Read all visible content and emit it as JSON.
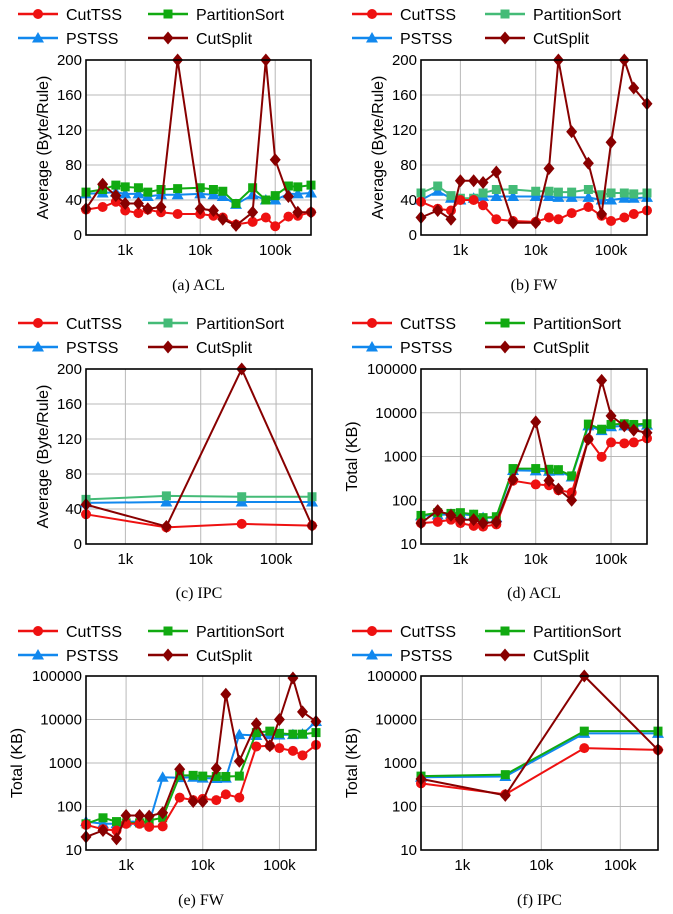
{
  "colors": {
    "CutTSS": "#ee1111",
    "PartitionSort": "#11aa11",
    "PartitionSort_light": "#44bb77",
    "PSTSS": "#1188ee",
    "CutSplit": "#880000"
  },
  "chart_data": [
    {
      "id": "a",
      "type": "line",
      "caption": "(a)  ACL",
      "ylabel": "Average (Byte/Rule)",
      "xscale": "log",
      "ylim": [
        0,
        200
      ],
      "yticks": [
        0,
        40,
        80,
        120,
        160,
        200
      ],
      "xticks": [
        {
          "v": 1000,
          "label": "1k"
        },
        {
          "v": 10000,
          "label": "10k"
        },
        {
          "v": 100000,
          "label": "100k"
        }
      ],
      "legend_order": [
        "CutTSS",
        "PartitionSort",
        "PSTSS",
        "CutSplit"
      ],
      "series": [
        {
          "name": "CutTSS",
          "color": "#ee1111",
          "marker": "circle",
          "x": [
            300,
            500,
            750,
            1000,
            1500,
            2000,
            3000,
            5000,
            10000,
            15000,
            20000,
            30000,
            50000,
            75000,
            100000,
            150000,
            200000,
            300000
          ],
          "y": [
            29,
            32,
            38,
            28,
            25,
            29,
            26,
            24,
            24,
            22,
            20,
            12,
            15,
            20,
            10,
            21,
            22,
            26
          ]
        },
        {
          "name": "PartitionSort",
          "color": "#11aa11",
          "marker": "square",
          "x": [
            300,
            500,
            750,
            1000,
            1500,
            2000,
            3000,
            5000,
            10000,
            15000,
            20000,
            30000,
            50000,
            75000,
            100000,
            150000,
            200000,
            300000
          ],
          "y": [
            49,
            52,
            57,
            55,
            54,
            49,
            52,
            53,
            54,
            52,
            50,
            36,
            54,
            40,
            45,
            56,
            55,
            57
          ]
        },
        {
          "name": "PSTSS",
          "color": "#1188ee",
          "marker": "triangle",
          "x": [
            300,
            500,
            750,
            1000,
            1500,
            2000,
            3000,
            5000,
            10000,
            15000,
            20000,
            30000,
            50000,
            75000,
            100000,
            150000,
            200000,
            300000
          ],
          "y": [
            47,
            48,
            49,
            47,
            47,
            44,
            46,
            46,
            47,
            46,
            44,
            35,
            46,
            40,
            40,
            47,
            47,
            48
          ]
        },
        {
          "name": "CutSplit",
          "color": "#880000",
          "marker": "diamond",
          "x": [
            300,
            500,
            750,
            1000,
            1500,
            2000,
            3000,
            5000,
            10000,
            15000,
            20000,
            30000,
            50000,
            75000,
            100000,
            150000,
            200000,
            300000
          ],
          "y": [
            30,
            58,
            45,
            36,
            36,
            30,
            32,
            200,
            30,
            28,
            18,
            11,
            26,
            200,
            86,
            44,
            26,
            26
          ]
        }
      ]
    },
    {
      "id": "b",
      "type": "line",
      "caption": "(b)  FW",
      "ylabel": "Average (Byte/Rule)",
      "xscale": "log",
      "ylim": [
        0,
        200
      ],
      "yticks": [
        0,
        40,
        80,
        120,
        160,
        200
      ],
      "xticks": [
        {
          "v": 1000,
          "label": "1k"
        },
        {
          "v": 10000,
          "label": "10k"
        },
        {
          "v": 100000,
          "label": "100k"
        }
      ],
      "legend_order": [
        "CutTSS",
        "PartitionSort",
        "PSTSS",
        "CutSplit"
      ],
      "series": [
        {
          "name": "CutTSS",
          "color": "#ee1111",
          "marker": "circle",
          "x": [
            300,
            500,
            750,
            1000,
            1500,
            2000,
            3000,
            5000,
            10000,
            15000,
            20000,
            30000,
            50000,
            75000,
            100000,
            150000,
            200000,
            300000
          ],
          "y": [
            38,
            30,
            28,
            40,
            40,
            34,
            18,
            16,
            15,
            20,
            18,
            25,
            32,
            22,
            16,
            20,
            24,
            28
          ]
        },
        {
          "name": "PartitionSort",
          "color": "#44bb77",
          "marker": "square",
          "x": [
            300,
            500,
            750,
            1000,
            1500,
            2000,
            3000,
            5000,
            10000,
            15000,
            20000,
            30000,
            50000,
            75000,
            100000,
            150000,
            200000,
            300000
          ],
          "y": [
            48,
            56,
            45,
            42,
            42,
            48,
            52,
            52,
            50,
            50,
            49,
            49,
            52,
            46,
            48,
            48,
            47,
            48
          ]
        },
        {
          "name": "PSTSS",
          "color": "#1188ee",
          "marker": "triangle",
          "x": [
            300,
            500,
            750,
            1000,
            1500,
            2000,
            3000,
            5000,
            10000,
            15000,
            20000,
            30000,
            50000,
            75000,
            100000,
            150000,
            200000,
            300000
          ],
          "y": [
            40,
            50,
            42,
            40,
            42,
            44,
            44,
            44,
            44,
            44,
            43,
            43,
            43,
            40,
            40,
            42,
            42,
            43
          ]
        },
        {
          "name": "CutSplit",
          "color": "#880000",
          "marker": "diamond",
          "x": [
            300,
            500,
            750,
            1000,
            1500,
            2000,
            3000,
            5000,
            10000,
            15000,
            20000,
            30000,
            50000,
            75000,
            100000,
            150000,
            200000,
            300000
          ],
          "y": [
            20,
            28,
            18,
            62,
            62,
            60,
            72,
            14,
            14,
            76,
            200,
            118,
            82,
            24,
            106,
            200,
            168,
            150
          ]
        }
      ]
    },
    {
      "id": "c",
      "type": "line",
      "caption": "(c)  IPC",
      "ylabel": "Average (Byte/Rule)",
      "xscale": "log",
      "ylim": [
        0,
        200
      ],
      "yticks": [
        0,
        40,
        80,
        120,
        160,
        200
      ],
      "xticks": [
        {
          "v": 1000,
          "label": "1k"
        },
        {
          "v": 10000,
          "label": "10k"
        },
        {
          "v": 100000,
          "label": "100k"
        }
      ],
      "legend_order": [
        "CutTSS",
        "PartitionSort",
        "PSTSS",
        "CutSplit"
      ],
      "series": [
        {
          "name": "CutTSS",
          "color": "#ee1111",
          "marker": "circle",
          "x": [
            300,
            3500,
            35000,
            300000
          ],
          "y": [
            34,
            19,
            23,
            21
          ]
        },
        {
          "name": "PartitionSort",
          "color": "#44bb77",
          "marker": "square",
          "x": [
            300,
            3500,
            35000,
            300000
          ],
          "y": [
            51,
            55,
            54,
            54
          ]
        },
        {
          "name": "PSTSS",
          "color": "#1188ee",
          "marker": "triangle",
          "x": [
            300,
            3500,
            35000,
            300000
          ],
          "y": [
            47,
            48,
            48,
            48
          ]
        },
        {
          "name": "CutSplit",
          "color": "#880000",
          "marker": "diamond",
          "x": [
            300,
            3500,
            35000,
            300000
          ],
          "y": [
            45,
            20,
            200,
            21
          ]
        }
      ]
    },
    {
      "id": "d",
      "type": "line",
      "caption": "(d)  ACL",
      "ylabel": "Total (KB)",
      "xscale": "log",
      "yscale": "log",
      "ylim": [
        10,
        100000
      ],
      "yticks": [
        10,
        100,
        1000,
        10000,
        100000
      ],
      "yticklabels": [
        "10",
        "100",
        "1000",
        "10000",
        "100000"
      ],
      "xticks": [
        {
          "v": 1000,
          "label": "1k"
        },
        {
          "v": 10000,
          "label": "10k"
        },
        {
          "v": 100000,
          "label": "100k"
        }
      ],
      "legend_order": [
        "CutTSS",
        "PartitionSort",
        "PSTSS",
        "CutSplit"
      ],
      "series": [
        {
          "name": "CutTSS",
          "color": "#ee1111",
          "marker": "circle",
          "x": [
            300,
            500,
            750,
            1000,
            1500,
            2000,
            3000,
            5000,
            10000,
            15000,
            20000,
            30000,
            50000,
            75000,
            100000,
            150000,
            200000,
            300000
          ],
          "y": [
            30,
            32,
            36,
            30,
            26,
            25,
            28,
            280,
            230,
            220,
            170,
            150,
            2500,
            980,
            2100,
            2000,
            2100,
            2600
          ]
        },
        {
          "name": "PartitionSort",
          "color": "#11aa11",
          "marker": "square",
          "x": [
            300,
            500,
            750,
            1000,
            1500,
            2000,
            3000,
            5000,
            10000,
            15000,
            20000,
            30000,
            50000,
            75000,
            100000,
            150000,
            200000,
            300000
          ],
          "y": [
            45,
            52,
            50,
            52,
            48,
            40,
            42,
            530,
            530,
            510,
            500,
            360,
            5500,
            4200,
            5400,
            5600,
            5400,
            5600
          ]
        },
        {
          "name": "PSTSS",
          "color": "#1188ee",
          "marker": "triangle",
          "x": [
            300,
            500,
            750,
            1000,
            1500,
            2000,
            3000,
            5000,
            10000,
            15000,
            20000,
            30000,
            50000,
            75000,
            100000,
            150000,
            200000,
            300000
          ],
          "y": [
            44,
            46,
            48,
            48,
            45,
            40,
            40,
            480,
            470,
            460,
            470,
            340,
            5000,
            3900,
            4800,
            5000,
            5000,
            5200
          ]
        },
        {
          "name": "CutSplit",
          "color": "#880000",
          "marker": "diamond",
          "x": [
            300,
            500,
            750,
            1000,
            1500,
            2000,
            3000,
            5000,
            10000,
            15000,
            20000,
            30000,
            50000,
            75000,
            100000,
            150000,
            200000,
            300000
          ],
          "y": [
            30,
            58,
            45,
            36,
            36,
            30,
            32,
            300,
            6200,
            280,
            180,
            100,
            2500,
            55000,
            8500,
            5000,
            4000,
            3500
          ]
        }
      ]
    },
    {
      "id": "e",
      "type": "line",
      "caption": "(e)  FW",
      "ylabel": "Total (KB)",
      "xscale": "log",
      "yscale": "log",
      "ylim": [
        10,
        100000
      ],
      "yticks": [
        10,
        100,
        1000,
        10000,
        100000
      ],
      "yticklabels": [
        "10",
        "100",
        "1000",
        "10000",
        "100000"
      ],
      "xticks": [
        {
          "v": 1000,
          "label": "1k"
        },
        {
          "v": 10000,
          "label": "10k"
        },
        {
          "v": 100000,
          "label": "100k"
        }
      ],
      "legend_order": [
        "CutTSS",
        "PartitionSort",
        "PSTSS",
        "CutSplit"
      ],
      "series": [
        {
          "name": "CutTSS",
          "color": "#ee1111",
          "marker": "circle",
          "x": [
            300,
            500,
            750,
            1000,
            1500,
            2000,
            3000,
            5000,
            7500,
            10000,
            15000,
            20000,
            30000,
            50000,
            75000,
            100000,
            150000,
            200000,
            300000
          ],
          "y": [
            38,
            30,
            28,
            40,
            40,
            34,
            35,
            160,
            140,
            150,
            140,
            190,
            160,
            2400,
            2500,
            2200,
            1900,
            1500,
            2600
          ]
        },
        {
          "name": "PartitionSort",
          "color": "#11aa11",
          "marker": "square",
          "x": [
            300,
            500,
            750,
            1000,
            1500,
            2000,
            3000,
            5000,
            7500,
            10000,
            15000,
            20000,
            30000,
            50000,
            75000,
            100000,
            150000,
            200000,
            300000
          ],
          "y": [
            40,
            55,
            45,
            42,
            42,
            48,
            55,
            520,
            520,
            500,
            490,
            490,
            500,
            5000,
            5400,
            4800,
            4600,
            4600,
            5000
          ]
        },
        {
          "name": "PSTSS",
          "color": "#1188ee",
          "marker": "triangle",
          "x": [
            300,
            500,
            750,
            1000,
            1500,
            2000,
            3000,
            5000,
            7500,
            10000,
            15000,
            20000,
            30000,
            50000,
            75000,
            100000,
            150000,
            200000,
            300000
          ],
          "y": [
            45,
            40,
            40,
            45,
            45,
            42,
            470,
            460,
            470,
            450,
            440,
            450,
            4500,
            4300,
            4500,
            4400,
            4500,
            4600,
            9000
          ]
        },
        {
          "name": "CutSplit",
          "color": "#880000",
          "marker": "diamond",
          "x": [
            300,
            500,
            750,
            1000,
            1500,
            2000,
            3000,
            5000,
            7500,
            10000,
            15000,
            20000,
            30000,
            50000,
            75000,
            100000,
            150000,
            200000,
            300000
          ],
          "y": [
            20,
            28,
            18,
            62,
            62,
            60,
            72,
            720,
            130,
            130,
            750,
            38000,
            1100,
            8000,
            2500,
            10000,
            90000,
            15000,
            9000
          ]
        }
      ]
    },
    {
      "id": "f",
      "type": "line",
      "caption": "(f)  IPC",
      "ylabel": "Total (KB)",
      "xscale": "log",
      "yscale": "log",
      "ylim": [
        10,
        100000
      ],
      "yticks": [
        10,
        100,
        1000,
        10000,
        100000
      ],
      "yticklabels": [
        "10",
        "100",
        "1000",
        "10000",
        "100000"
      ],
      "xticks": [
        {
          "v": 1000,
          "label": "1k"
        },
        {
          "v": 10000,
          "label": "10k"
        },
        {
          "v": 100000,
          "label": "100k"
        }
      ],
      "legend_order": [
        "CutTSS",
        "PartitionSort",
        "PSTSS",
        "CutSplit"
      ],
      "series": [
        {
          "name": "CutTSS",
          "color": "#ee1111",
          "marker": "circle",
          "x": [
            300,
            3500,
            35000,
            300000
          ],
          "y": [
            340,
            190,
            2200,
            2000
          ]
        },
        {
          "name": "PartitionSort",
          "color": "#11aa11",
          "marker": "square",
          "x": [
            300,
            3500,
            35000,
            300000
          ],
          "y": [
            500,
            540,
            5400,
            5400
          ]
        },
        {
          "name": "PSTSS",
          "color": "#1188ee",
          "marker": "triangle",
          "x": [
            300,
            3500,
            35000,
            300000
          ],
          "y": [
            470,
            490,
            4800,
            4800
          ]
        },
        {
          "name": "CutSplit",
          "color": "#880000",
          "marker": "diamond",
          "x": [
            300,
            3500,
            35000,
            300000
          ],
          "y": [
            430,
            180,
            100000,
            2000
          ]
        }
      ]
    }
  ]
}
